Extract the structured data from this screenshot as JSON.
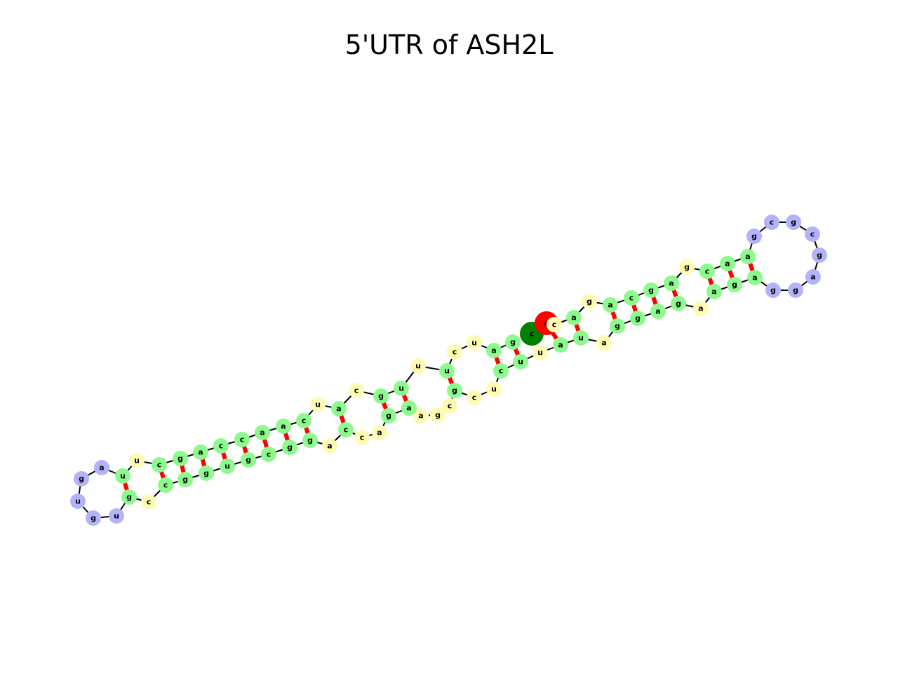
{
  "title": "5'UTR of ASH2L",
  "colors": {
    "loop": "#b3b3fa",
    "unpaired": "#fffbb3",
    "paired": "#8cfa8c",
    "base_pair_link": "#ff0000",
    "backbone": "#000000",
    "start_marker": "#008000",
    "end_marker": "#ff0000"
  },
  "sequence": [
    "c",
    "a",
    "c",
    "a",
    "g",
    "a",
    "c",
    "g",
    "a",
    "g",
    "c",
    "a",
    "a",
    "g",
    "c",
    "g",
    "c",
    "g",
    "a",
    "g",
    "g",
    "a",
    "g",
    "a",
    "a",
    "g",
    "a",
    "g",
    "g",
    "a",
    "u",
    "a",
    "u",
    "u",
    "c",
    "u",
    "c",
    "g",
    "c",
    "g",
    "a",
    "a",
    "g",
    "a",
    "c",
    "c",
    "a",
    "g",
    "g",
    "c",
    "g",
    "u",
    "g",
    "g",
    "c",
    "c",
    "g",
    "u",
    "g",
    "u",
    "g",
    "a",
    "u",
    "u",
    "c",
    "g",
    "a",
    "c",
    "c",
    "a",
    "a",
    "c",
    "u",
    "a",
    "c",
    "g",
    "u",
    "u",
    "u",
    "c",
    "u",
    "a",
    "g",
    "u",
    "c",
    "g",
    "u",
    "u",
    "c",
    "a"
  ],
  "base_pairs": [
    [
      6,
      82
    ],
    [
      8,
      80
    ],
    [
      9,
      79
    ],
    [
      10,
      78
    ],
    [
      11,
      77
    ],
    [
      12,
      76
    ],
    [
      13,
      75
    ],
    [
      14,
      74
    ],
    [
      15,
      73
    ],
    [
      16,
      72
    ],
    [
      18,
      70
    ],
    [
      19,
      69
    ],
    [
      20,
      68
    ],
    [
      21,
      67
    ],
    [
      22,
      66
    ],
    [
      24,
      64
    ],
    [
      25,
      63
    ],
    [
      26,
      62
    ],
    [
      27,
      61
    ],
    [
      28,
      60
    ],
    [
      29,
      59
    ],
    [
      31,
      57
    ],
    [
      32,
      56
    ],
    [
      34,
      54
    ],
    [
      37,
      51
    ],
    [
      38,
      50
    ],
    [
      42,
      46
    ],
    [
      43,
      45
    ]
  ]
}
